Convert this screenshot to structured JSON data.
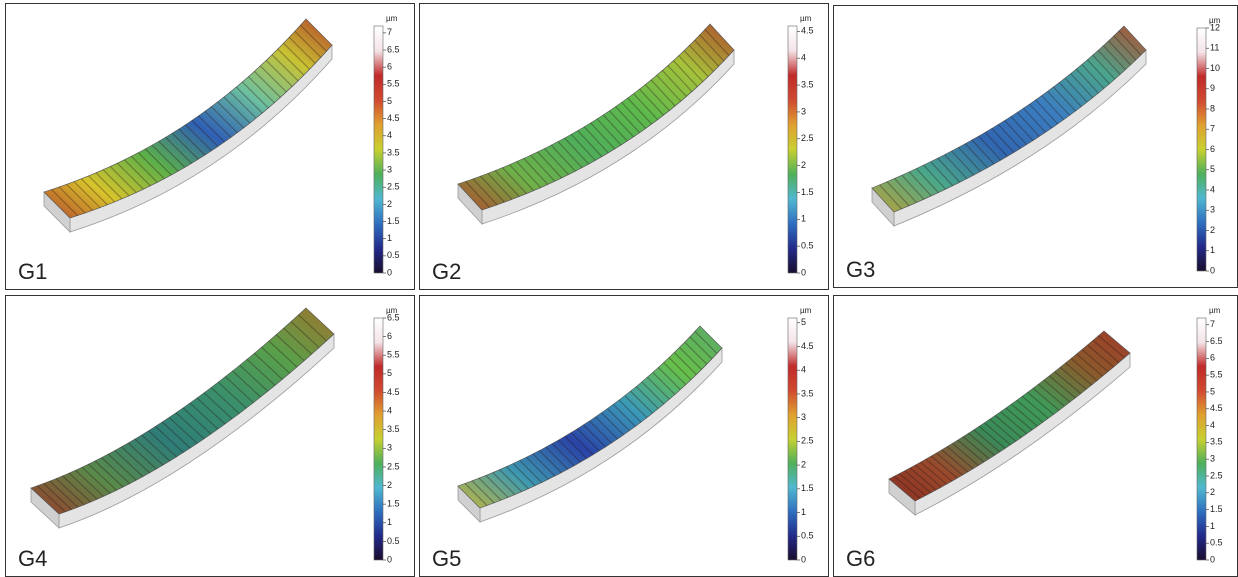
{
  "panels": [
    {
      "label": "G1",
      "unit": "µm",
      "range": [
        0,
        7.2
      ],
      "ticks": [
        0,
        0.5,
        1,
        1.5,
        2,
        2.5,
        3,
        3.5,
        4,
        4.5,
        5,
        5.5,
        6,
        6.5,
        7
      ]
    },
    {
      "label": "G2",
      "unit": "µm",
      "range": [
        0,
        4.6
      ],
      "ticks": [
        0,
        0.5,
        1,
        1.5,
        2,
        2.5,
        3,
        3.5,
        4,
        4.5
      ]
    },
    {
      "label": "G3",
      "unit": "µm",
      "range": [
        0,
        12
      ],
      "ticks": [
        0,
        1,
        2,
        3,
        4,
        5,
        6,
        7,
        8,
        9,
        10,
        11,
        12
      ]
    },
    {
      "label": "G4",
      "unit": "µm",
      "range": [
        0,
        6.5
      ],
      "ticks": [
        0,
        0.5,
        1,
        1.5,
        2,
        2.5,
        3,
        3.5,
        4,
        4.5,
        5,
        5.5,
        6,
        6.5
      ]
    },
    {
      "label": "G5",
      "unit": "µm",
      "range": [
        0,
        5.1
      ],
      "ticks": [
        0,
        0.5,
        1,
        1.5,
        2,
        2.5,
        3,
        3.5,
        4,
        4.5,
        5
      ]
    },
    {
      "label": "G6",
      "unit": "µm",
      "range": [
        0,
        7.2
      ],
      "ticks": [
        0,
        0.5,
        1,
        1.5,
        2,
        2.5,
        3,
        3.5,
        4,
        4.5,
        5,
        5.5,
        6,
        6.5,
        7
      ]
    }
  ]
}
